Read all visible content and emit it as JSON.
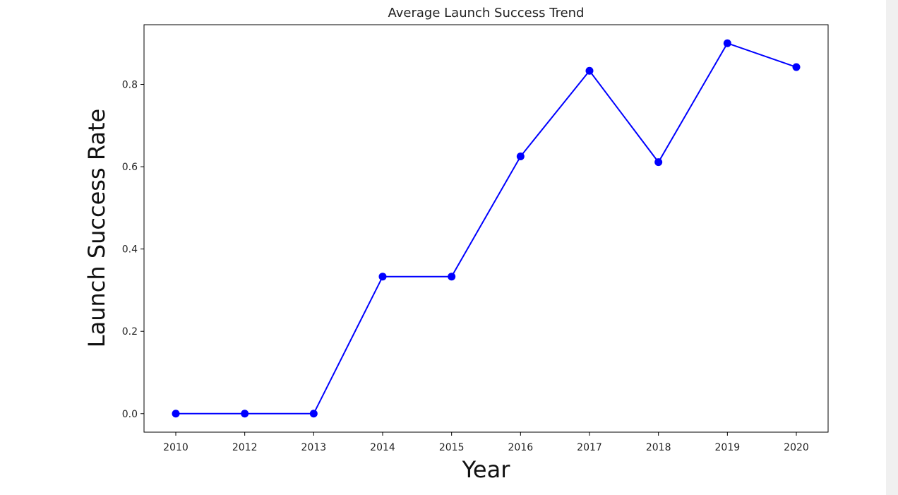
{
  "chart_data": {
    "type": "line",
    "title": "Average Launch Success Trend",
    "xlabel": "Year",
    "ylabel": "Launch Success Rate",
    "categories": [
      "2010",
      "2012",
      "2013",
      "2014",
      "2015",
      "2016",
      "2017",
      "2018",
      "2019",
      "2020"
    ],
    "series": [
      {
        "values": [
          0.0,
          0.0,
          0.0,
          0.333,
          0.333,
          0.625,
          0.833,
          0.611,
          0.9,
          0.842
        ],
        "color": "#0000ff",
        "marker": "circle"
      }
    ],
    "yticks": [
      0.0,
      0.2,
      0.4,
      0.6,
      0.8
    ],
    "ytick_labels": [
      "0.0",
      "0.2",
      "0.4",
      "0.6",
      "0.8"
    ],
    "ylim": [
      -0.045,
      0.945
    ],
    "grid": false,
    "legend": "none"
  }
}
